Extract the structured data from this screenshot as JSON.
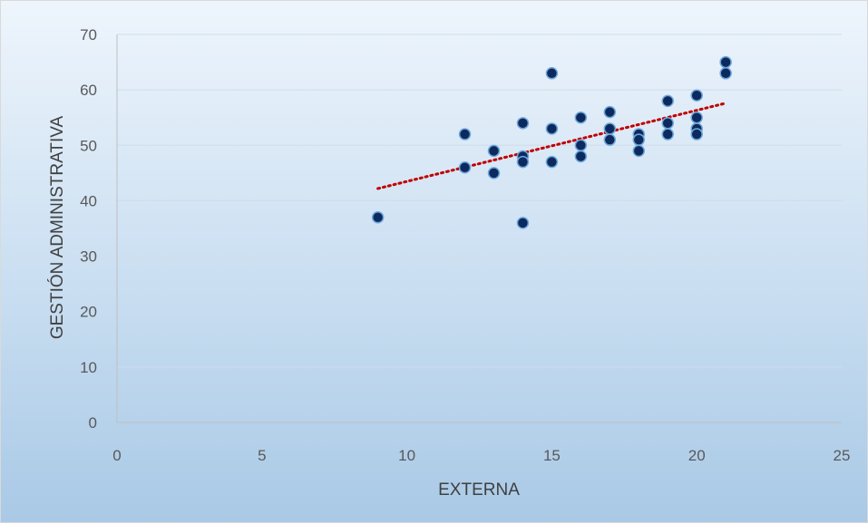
{
  "chart_data": {
    "type": "scatter",
    "title": "",
    "xlabel": "EXTERNA",
    "ylabel": "GESTIÓN ADMINISTRATIVA",
    "xlim": [
      0,
      25
    ],
    "ylim": [
      0,
      70
    ],
    "x_ticks": [
      0,
      5,
      10,
      15,
      20,
      25
    ],
    "y_ticks": [
      0,
      10,
      20,
      30,
      40,
      50,
      60,
      70
    ],
    "grid": true,
    "legend": "none",
    "marker_color": "#0d2a5e",
    "marker_edge_color": "#6fa8dc",
    "series": [
      {
        "points": [
          [
            9,
            37
          ],
          [
            12,
            52
          ],
          [
            12,
            46
          ],
          [
            13,
            49
          ],
          [
            13,
            45
          ],
          [
            14,
            54
          ],
          [
            14,
            48
          ],
          [
            14,
            47
          ],
          [
            14,
            36
          ],
          [
            15,
            63
          ],
          [
            15,
            53
          ],
          [
            15,
            47
          ],
          [
            16,
            55
          ],
          [
            16,
            50
          ],
          [
            16,
            48
          ],
          [
            17,
            56
          ],
          [
            17,
            53
          ],
          [
            17,
            51
          ],
          [
            18,
            52
          ],
          [
            18,
            51
          ],
          [
            18,
            49
          ],
          [
            19,
            58
          ],
          [
            19,
            54
          ],
          [
            19,
            52
          ],
          [
            20,
            59
          ],
          [
            20,
            55
          ],
          [
            20,
            53
          ],
          [
            20,
            52
          ],
          [
            21,
            65
          ],
          [
            21,
            63
          ]
        ]
      }
    ],
    "trendline": {
      "type": "linear",
      "color": "#c00000",
      "style": "dotted",
      "start": [
        9,
        42.2
      ],
      "end": [
        21,
        57.6
      ]
    }
  }
}
